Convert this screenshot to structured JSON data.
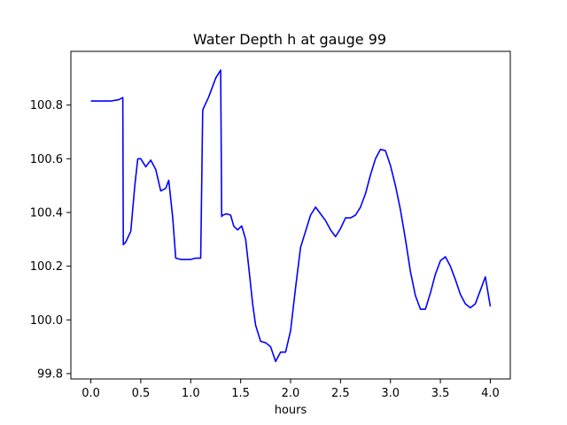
{
  "chart_data": {
    "type": "line",
    "title": "Water Depth h at gauge 99",
    "xlabel": "hours",
    "ylabel": "",
    "xlim": [
      -0.2,
      4.2
    ],
    "ylim": [
      99.78,
      101.0
    ],
    "xticks": [
      0.0,
      0.5,
      1.0,
      1.5,
      2.0,
      2.5,
      3.0,
      3.5,
      4.0
    ],
    "xtick_labels": [
      "0.0",
      "0.5",
      "1.0",
      "1.5",
      "2.0",
      "2.5",
      "3.0",
      "3.5",
      "4.0"
    ],
    "yticks": [
      99.8,
      100.0,
      100.2,
      100.4,
      100.6,
      100.8
    ],
    "ytick_labels": [
      "99.8",
      "100.0",
      "100.2",
      "100.4",
      "100.6",
      "100.8"
    ],
    "grid": false,
    "legend": "none",
    "series": [
      {
        "color": "#0000ff",
        "x": [
          0.0,
          0.1,
          0.2,
          0.28,
          0.32,
          0.325,
          0.35,
          0.4,
          0.44,
          0.47,
          0.5,
          0.55,
          0.6,
          0.65,
          0.7,
          0.75,
          0.78,
          0.82,
          0.85,
          0.9,
          0.95,
          1.0,
          1.05,
          1.1,
          1.12,
          1.13,
          1.18,
          1.25,
          1.3,
          1.31,
          1.32,
          1.36,
          1.4,
          1.43,
          1.47,
          1.51,
          1.55,
          1.58,
          1.62,
          1.65,
          1.7,
          1.75,
          1.8,
          1.85,
          1.9,
          1.95,
          2.0,
          2.05,
          2.1,
          2.15,
          2.2,
          2.25,
          2.3,
          2.35,
          2.4,
          2.45,
          2.5,
          2.55,
          2.6,
          2.65,
          2.7,
          2.75,
          2.8,
          2.85,
          2.9,
          2.95,
          3.0,
          3.05,
          3.1,
          3.15,
          3.2,
          3.25,
          3.3,
          3.35,
          3.4,
          3.45,
          3.5,
          3.55,
          3.6,
          3.65,
          3.7,
          3.75,
          3.8,
          3.85,
          3.9,
          3.95,
          4.0
        ],
        "y": [
          100.815,
          100.815,
          100.815,
          100.82,
          100.828,
          100.28,
          100.29,
          100.33,
          100.5,
          100.6,
          100.6,
          100.57,
          100.595,
          100.56,
          100.48,
          100.49,
          100.52,
          100.38,
          100.23,
          100.225,
          100.225,
          100.225,
          100.23,
          100.23,
          100.78,
          100.79,
          100.83,
          100.9,
          100.93,
          100.385,
          100.39,
          100.395,
          100.39,
          100.35,
          100.335,
          100.35,
          100.3,
          100.2,
          100.06,
          99.98,
          99.92,
          99.915,
          99.9,
          99.845,
          99.88,
          99.88,
          99.96,
          100.12,
          100.27,
          100.33,
          100.39,
          100.42,
          100.395,
          100.37,
          100.335,
          100.31,
          100.34,
          100.38,
          100.38,
          100.39,
          100.42,
          100.47,
          100.54,
          100.6,
          100.635,
          100.63,
          100.575,
          100.5,
          100.41,
          100.3,
          100.18,
          100.09,
          100.04,
          100.04,
          100.1,
          100.17,
          100.22,
          100.235,
          100.2,
          100.15,
          100.095,
          100.06,
          100.045,
          100.06,
          100.11,
          100.16,
          100.05
        ]
      }
    ]
  }
}
